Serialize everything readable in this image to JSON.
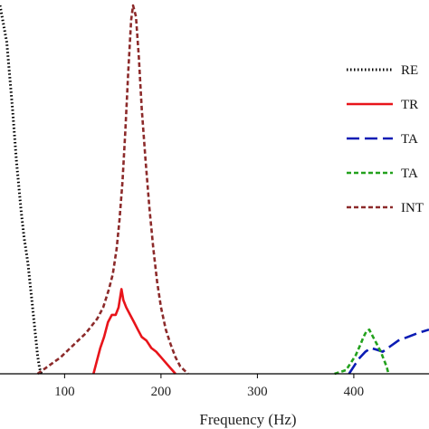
{
  "chart_data": {
    "type": "line",
    "xlabel": "Frequency (Hz)",
    "ylabel": "",
    "title": "",
    "xlim": [
      33,
      478
    ],
    "ylim": [
      0,
      1
    ],
    "xticks": [
      100,
      200,
      300,
      400
    ],
    "grid": false,
    "legend_placement": "right",
    "series": [
      {
        "name": "RE",
        "color": "#000000",
        "dash": "dotted",
        "points": [
          [
            33,
            1.0
          ],
          [
            40,
            0.9
          ],
          [
            46,
            0.72
          ],
          [
            50,
            0.58
          ],
          [
            55,
            0.44
          ],
          [
            58,
            0.37
          ],
          [
            62,
            0.3
          ],
          [
            64,
            0.25
          ],
          [
            66,
            0.2
          ],
          [
            68,
            0.15
          ],
          [
            70,
            0.1
          ],
          [
            72,
            0.05
          ],
          [
            74,
            0.015
          ],
          [
            76,
            0.0
          ]
        ]
      },
      {
        "name": "TR",
        "color": "#e8141a",
        "dash": "solid",
        "points": [
          [
            130,
            0.0
          ],
          [
            133,
            0.03
          ],
          [
            137,
            0.07
          ],
          [
            141,
            0.1
          ],
          [
            145,
            0.14
          ],
          [
            149,
            0.16
          ],
          [
            153,
            0.16
          ],
          [
            156,
            0.18
          ],
          [
            159,
            0.23
          ],
          [
            161,
            0.2
          ],
          [
            164,
            0.18
          ],
          [
            168,
            0.16
          ],
          [
            172,
            0.14
          ],
          [
            176,
            0.12
          ],
          [
            180,
            0.1
          ],
          [
            185,
            0.09
          ],
          [
            190,
            0.07
          ],
          [
            195,
            0.06
          ],
          [
            200,
            0.045
          ],
          [
            205,
            0.03
          ],
          [
            210,
            0.015
          ],
          [
            215,
            0.0
          ]
        ]
      },
      {
        "name": "TA",
        "color": "#0b1cb4",
        "dash": "longdash",
        "points": [
          [
            395,
            0.0
          ],
          [
            400,
            0.02
          ],
          [
            405,
            0.04
          ],
          [
            412,
            0.06
          ],
          [
            418,
            0.07
          ],
          [
            424,
            0.065
          ],
          [
            430,
            0.06
          ],
          [
            438,
            0.075
          ],
          [
            446,
            0.09
          ],
          [
            456,
            0.1
          ],
          [
            466,
            0.11
          ],
          [
            478,
            0.12
          ]
        ]
      },
      {
        "name": "TA",
        "color": "#23a11d",
        "dash": "dashed",
        "points": [
          [
            380,
            0.0
          ],
          [
            386,
            0.005
          ],
          [
            392,
            0.01
          ],
          [
            397,
            0.03
          ],
          [
            402,
            0.05
          ],
          [
            407,
            0.08
          ],
          [
            410,
            0.1
          ],
          [
            413,
            0.115
          ],
          [
            416,
            0.12
          ],
          [
            420,
            0.1
          ],
          [
            424,
            0.08
          ],
          [
            428,
            0.06
          ],
          [
            431,
            0.04
          ],
          [
            434,
            0.02
          ],
          [
            436,
            0.0
          ]
        ]
      },
      {
        "name": "INT",
        "color": "#8c2a2a",
        "dash": "dashed",
        "points": [
          [
            72,
            0.0
          ],
          [
            80,
            0.015
          ],
          [
            88,
            0.03
          ],
          [
            96,
            0.045
          ],
          [
            104,
            0.065
          ],
          [
            110,
            0.08
          ],
          [
            116,
            0.095
          ],
          [
            122,
            0.11
          ],
          [
            128,
            0.13
          ],
          [
            134,
            0.15
          ],
          [
            140,
            0.18
          ],
          [
            146,
            0.23
          ],
          [
            150,
            0.27
          ],
          [
            154,
            0.34
          ],
          [
            157,
            0.42
          ],
          [
            160,
            0.52
          ],
          [
            163,
            0.66
          ],
          [
            166,
            0.82
          ],
          [
            169,
            0.96
          ],
          [
            171,
            1.0
          ],
          [
            174,
            0.97
          ],
          [
            177,
            0.86
          ],
          [
            180,
            0.72
          ],
          [
            184,
            0.58
          ],
          [
            188,
            0.45
          ],
          [
            192,
            0.34
          ],
          [
            196,
            0.25
          ],
          [
            200,
            0.18
          ],
          [
            205,
            0.12
          ],
          [
            210,
            0.08
          ],
          [
            215,
            0.045
          ],
          [
            220,
            0.02
          ],
          [
            228,
            0.0
          ]
        ]
      }
    ]
  }
}
